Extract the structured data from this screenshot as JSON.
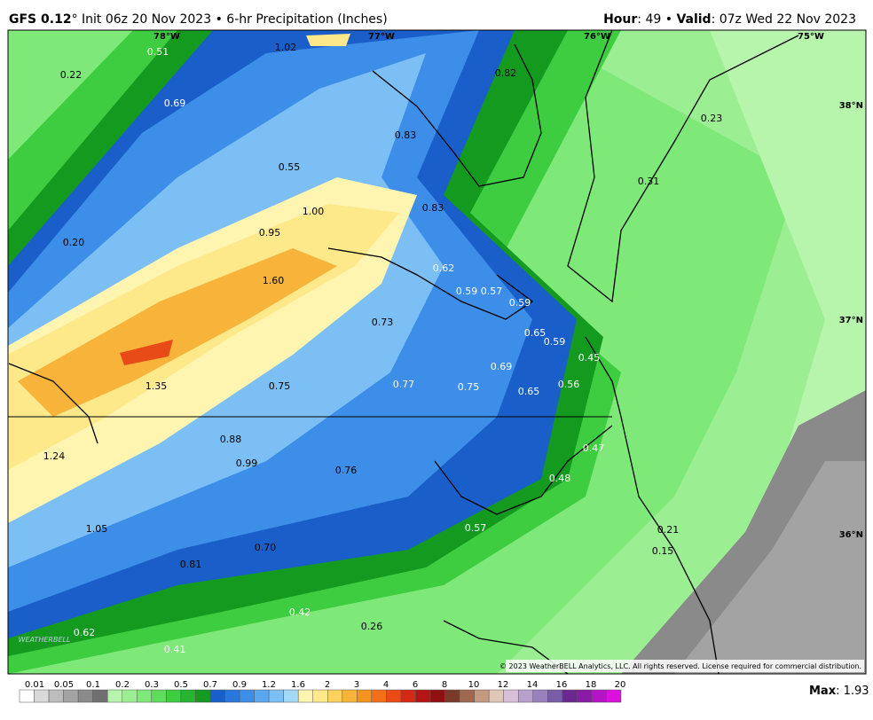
{
  "header": {
    "model": "GFS 0.12",
    "run": "° Init 06z 20 Nov 2023 • 6-hr Precipitation (Inches)",
    "hour_label": "Hour",
    "hour_value": ": 49 • ",
    "valid_label": "Valid",
    "valid_value": ": 07z Wed 22 Nov 2023"
  },
  "map": {
    "longitudes": [
      "78°W",
      "77°W",
      "76°W",
      "75°W"
    ],
    "latitudes": [
      "38°N",
      "37°N",
      "36°N"
    ],
    "values": [
      "0.51",
      "1.02",
      "0.22",
      "0.82",
      "0.69",
      "0.23",
      "0.83",
      "0.55",
      "0.31",
      "1.00",
      "0.83",
      "0.95",
      "0.20",
      "0.62",
      "1.60",
      "0.59",
      "0.57",
      "0.59",
      "0.73",
      "0.65",
      "0.59",
      "0.45",
      "0.69",
      "1.35",
      "0.75",
      "0.77",
      "0.75",
      "0.56",
      "0.65",
      "0.88",
      "0.47",
      "1.24",
      "0.99",
      "0.76",
      "0.48",
      "0.57",
      "1.05",
      "0.21",
      "0.70",
      "0.15",
      "0.81",
      "0.42",
      "0.26",
      "0.62",
      "0.41"
    ],
    "copyright": "© 2023 WeatherBELL Analytics, LLC. All rights reserved. License required for commercial distribution.",
    "logo": "WEATHERBELL"
  },
  "colorbar": {
    "labels": [
      "0.01",
      "0.05",
      "0.1",
      "0.2",
      "0.3",
      "0.5",
      "0.7",
      "0.9",
      "1.2",
      "1.6",
      "2",
      "3",
      "4",
      "6",
      "8",
      "10",
      "12",
      "14",
      "16",
      "18",
      "20"
    ],
    "colors": [
      "#ffffff",
      "#d9d9d9",
      "#bdbdbd",
      "#a3a3a3",
      "#8a8a8a",
      "#707070",
      "#b7f5ad",
      "#9cee93",
      "#7ee878",
      "#5fdc5c",
      "#3ecd40",
      "#25b52f",
      "#139a1f",
      "#1a5fc9",
      "#2a77dc",
      "#3c8ee8",
      "#5aa6ef",
      "#7cbff4",
      "#a2d8f8",
      "#fff5b0",
      "#fde88a",
      "#fbd25e",
      "#f8b33a",
      "#f59320",
      "#f2701a",
      "#e84b17",
      "#d42a15",
      "#b51414",
      "#8e1010",
      "#7a3a2a",
      "#a06850",
      "#c49a80",
      "#e0c8b8",
      "#d8c0d8",
      "#b8a0cc",
      "#9880bc",
      "#7a5ca8",
      "#6a2890",
      "#8a1aa8",
      "#b414c4",
      "#dc10dc"
    ],
    "max_label": "Max",
    "max_value": ": 1.93"
  }
}
